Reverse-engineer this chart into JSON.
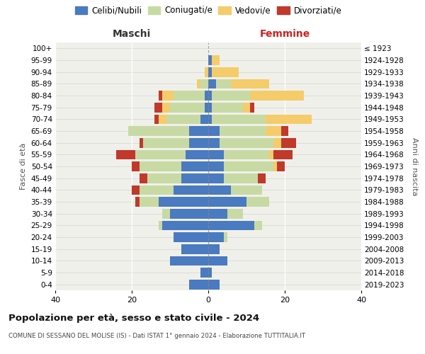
{
  "age_groups": [
    "0-4",
    "5-9",
    "10-14",
    "15-19",
    "20-24",
    "25-29",
    "30-34",
    "35-39",
    "40-44",
    "45-49",
    "50-54",
    "55-59",
    "60-64",
    "65-69",
    "70-74",
    "75-79",
    "80-84",
    "85-89",
    "90-94",
    "95-99",
    "100+"
  ],
  "birth_years": [
    "2019-2023",
    "2014-2018",
    "2009-2013",
    "2004-2008",
    "1999-2003",
    "1994-1998",
    "1989-1993",
    "1984-1988",
    "1979-1983",
    "1974-1978",
    "1969-1973",
    "1964-1968",
    "1959-1963",
    "1954-1958",
    "1949-1953",
    "1944-1948",
    "1939-1943",
    "1934-1938",
    "1929-1933",
    "1924-1928",
    "≤ 1923"
  ],
  "colors": {
    "celibi": "#4a7abf",
    "coniugati": "#c8daa4",
    "vedovi": "#f5cc6a",
    "divorziati": "#c0392b"
  },
  "maschi": {
    "celibi": [
      5,
      2,
      10,
      7,
      9,
      12,
      10,
      13,
      9,
      7,
      7,
      6,
      5,
      5,
      2,
      1,
      1,
      0,
      0,
      0,
      0
    ],
    "coniugati": [
      0,
      0,
      0,
      0,
      0,
      1,
      2,
      5,
      9,
      9,
      11,
      13,
      12,
      16,
      9,
      9,
      8,
      2,
      0,
      0,
      0
    ],
    "vedovi": [
      0,
      0,
      0,
      0,
      0,
      0,
      0,
      0,
      0,
      0,
      0,
      0,
      0,
      0,
      2,
      2,
      3,
      1,
      1,
      0,
      0
    ],
    "divorziati": [
      0,
      0,
      0,
      0,
      0,
      0,
      0,
      1,
      2,
      2,
      2,
      5,
      1,
      0,
      1,
      2,
      1,
      0,
      0,
      0,
      0
    ]
  },
  "femmine": {
    "nubili": [
      3,
      1,
      5,
      3,
      4,
      12,
      5,
      10,
      6,
      4,
      4,
      4,
      3,
      3,
      1,
      1,
      1,
      2,
      1,
      1,
      0
    ],
    "coniugate": [
      0,
      0,
      0,
      0,
      1,
      2,
      4,
      6,
      8,
      9,
      13,
      12,
      14,
      12,
      14,
      8,
      10,
      4,
      0,
      0,
      0
    ],
    "vedove": [
      0,
      0,
      0,
      0,
      0,
      0,
      0,
      0,
      0,
      0,
      1,
      1,
      2,
      4,
      12,
      2,
      14,
      10,
      7,
      2,
      0
    ],
    "divorziate": [
      0,
      0,
      0,
      0,
      0,
      0,
      0,
      0,
      0,
      2,
      2,
      5,
      4,
      2,
      0,
      1,
      0,
      0,
      0,
      0,
      0
    ]
  },
  "xlim": 40,
  "title": "Popolazione per età, sesso e stato civile - 2024",
  "subtitle": "COMUNE DI SESSANO DEL MOLISE (IS) - Dati ISTAT 1° gennaio 2024 - Elaborazione TUTTITALIA.IT",
  "ylabel_left": "Fasce di età",
  "ylabel_right": "Anni di nascita",
  "xlabel_left": "Maschi",
  "xlabel_right": "Femmine",
  "bg_color": "#f0f0eb",
  "bar_height": 0.82
}
